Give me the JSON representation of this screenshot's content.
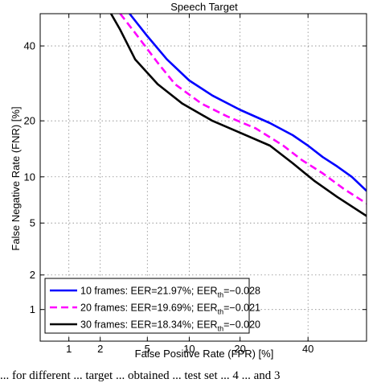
{
  "chart_data": {
    "type": "line",
    "title": "Speech Target",
    "xlabel": "False Positive Rate (FPR) [%]",
    "ylabel": "False Negative Rate (FNR) [%]",
    "x_scale": "probit",
    "y_scale": "probit",
    "xlim": [
      0.5,
      60
    ],
    "ylim": [
      0.5,
      50
    ],
    "xticks": [
      1,
      2,
      5,
      10,
      20,
      40
    ],
    "yticks": [
      1,
      2,
      5,
      10,
      20,
      40
    ],
    "grid": true,
    "legend_position": "bottom-left",
    "series": [
      {
        "name": "10 frames: EER=21.97%; EER",
        "name_sub": "th",
        "name_suffix": "=−0.028",
        "color": "#0000ff",
        "dash": "solid",
        "x": [
          3.6,
          5,
          7,
          10,
          14,
          20,
          28,
          35,
          40,
          45,
          50,
          55,
          60
        ],
        "y": [
          50,
          43,
          36,
          30,
          26,
          22.5,
          19.5,
          17,
          15,
          13,
          11.5,
          10,
          8.2
        ]
      },
      {
        "name": "20 frames: EER=19.69%; EER",
        "name_sub": "th",
        "name_suffix": "=−0.021",
        "color": "#ff00ff",
        "dash": "dashed",
        "x": [
          3.0,
          4,
          6,
          8,
          12,
          17,
          24,
          32,
          38,
          45,
          52,
          60
        ],
        "y": [
          50,
          44,
          35,
          29,
          24,
          21,
          18.4,
          15,
          12.5,
          10.5,
          8.5,
          6.8
        ]
      },
      {
        "name": "30 frames: EER=18.34%; EER",
        "name_sub": "th",
        "name_suffix": "=−0.020",
        "color": "#000000",
        "dash": "solid",
        "x": [
          2.5,
          3,
          4,
          6,
          9,
          14,
          20,
          28,
          35,
          42,
          50,
          60
        ],
        "y": [
          50,
          45,
          36,
          29,
          24,
          20,
          17.5,
          15,
          12,
          9.5,
          7.5,
          5.6
        ]
      }
    ]
  },
  "caption": "... for different ... target ... obtained ... test set ... 4 ... and 3"
}
